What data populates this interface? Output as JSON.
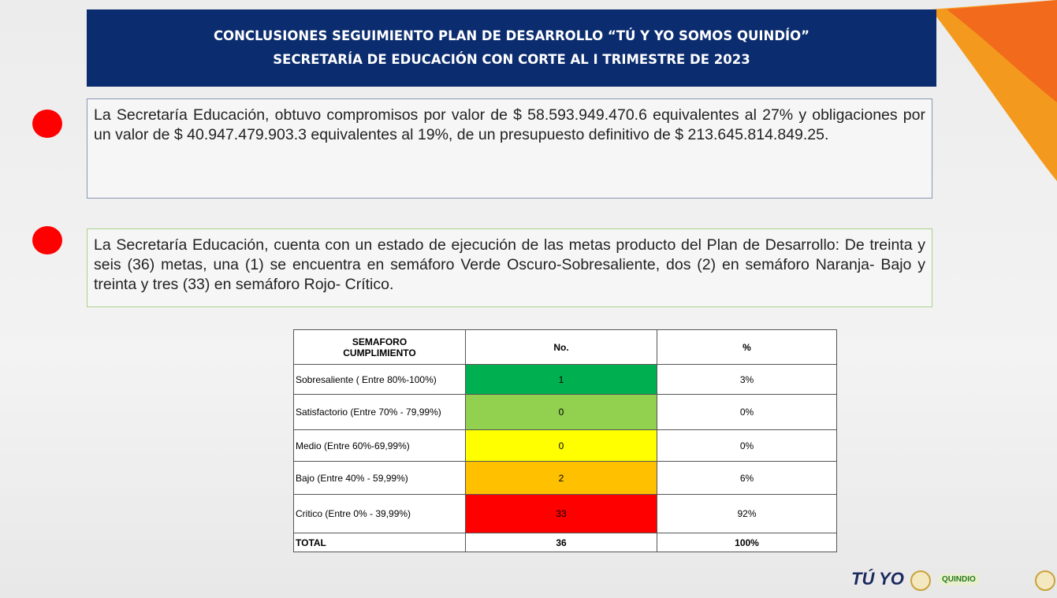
{
  "header": {
    "title": [
      "CONCLUSIONES SEGUIMIENTO PLAN DE DESARROLLO “TÚ Y YO SOMOS QUINDÍO”",
      "SECRETARÍA DE EDUCACIÓN  CON CORTE AL I TRIMESTRE DE 2023"
    ]
  },
  "paragraphs": [
    "La Secretaría Educación, obtuvo compromisos por valor de $ 58.593.949.470.6 equivalentes al 27% y obligaciones por un valor de $ 40.947.479.903.3 equivalentes al 19%, de un presupuesto definitivo de $ 213.645.814.849.25.",
    "La Secretaría Educación, cuenta con un estado de ejecución de las metas producto del Plan de Desarrollo: De treinta y seis (36) metas, una (1) se encuentra en semáforo Verde Oscuro-Sobresaliente, dos (2) en semáforo Naranja- Bajo y treinta y tres (33) en semáforo Rojo- Crítico."
  ],
  "table": {
    "headers": [
      "SEMAFORO CUMPLIMIENTO",
      "No.",
      "%"
    ],
    "rows": [
      [
        "Sobresaliente  ( Entre 80%-100%)",
        1,
        "3%"
      ],
      [
        "Satisfactorio (Entre 70% - 79,99%)",
        0,
        "0%"
      ],
      [
        "Medio (Entre 60%-69,99%)",
        0,
        "0%"
      ],
      [
        "Bajo (Entre 40% - 59,99%)",
        2,
        "6%"
      ],
      [
        "Critico (Entre 0% - 39,99%)",
        33,
        "92%"
      ],
      [
        "TOTAL",
        36,
        "100%"
      ]
    ]
  },
  "footer": {
    "logo": "TÚ YO",
    "logo2": "QUINDIO"
  }
}
